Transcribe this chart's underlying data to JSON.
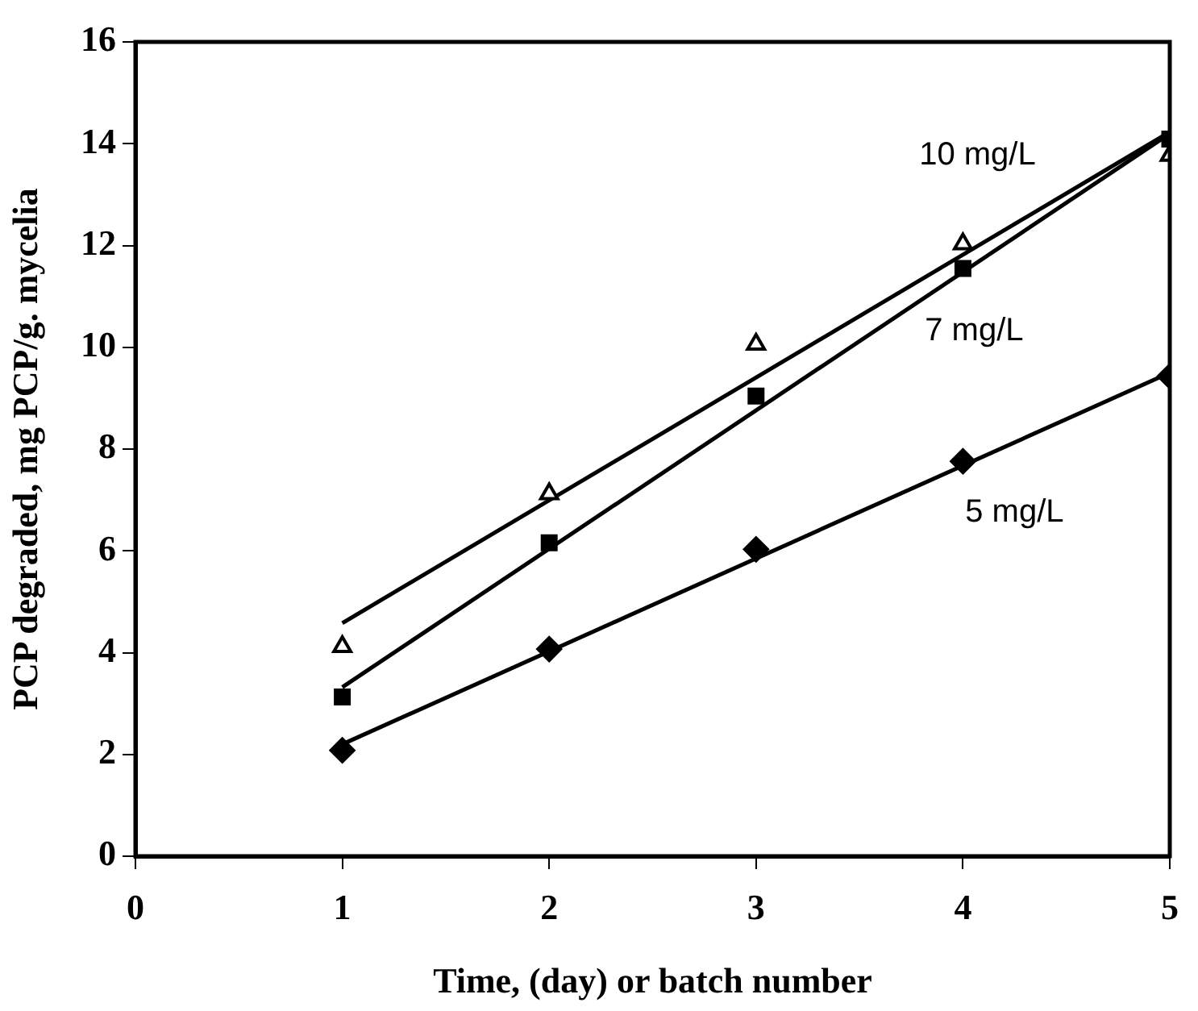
{
  "chart_data": {
    "type": "scatter",
    "xlabel": "Time, (day) or batch number",
    "ylabel": "PCP degraded, mg PCP/g. mycelia",
    "xlim": [
      0,
      5
    ],
    "xticks": [
      0,
      1,
      2,
      3,
      4,
      5
    ],
    "ylim": [
      0,
      16
    ],
    "yticks": [
      0,
      2,
      4,
      6,
      8,
      10,
      12,
      14,
      16
    ],
    "grid": false,
    "legend": false,
    "series": [
      {
        "name": "10 mg/L",
        "marker": "triangle",
        "color": "#000000",
        "x": [
          1,
          2,
          3,
          4,
          5
        ],
        "values": [
          4.12,
          7.12,
          10.06,
          12.03,
          13.77
        ]
      },
      {
        "name": "7 mg/L",
        "marker": "square",
        "color": "#000000",
        "x": [
          1,
          2,
          3,
          4,
          5
        ],
        "values": [
          3.13,
          6.16,
          9.04,
          11.55,
          14.09
        ]
      },
      {
        "name": "5 mg/L",
        "marker": "diamond",
        "color": "#000000",
        "x": [
          1,
          2,
          3,
          4,
          5
        ],
        "values": [
          2.08,
          4.07,
          6.03,
          7.76,
          9.43
        ]
      },
      {
        "type": "line",
        "marker": "none",
        "color": "#000000",
        "x": [
          1,
          5
        ],
        "values": [
          4.58,
          14.23
        ]
      },
      {
        "type": "line",
        "marker": "none",
        "color": "#000000",
        "x": [
          1,
          5
        ],
        "values": [
          3.32,
          14.2
        ]
      },
      {
        "type": "line",
        "marker": "none",
        "color": "#000000",
        "x": [
          1,
          5
        ],
        "values": [
          2.2,
          9.5
        ]
      }
    ]
  }
}
